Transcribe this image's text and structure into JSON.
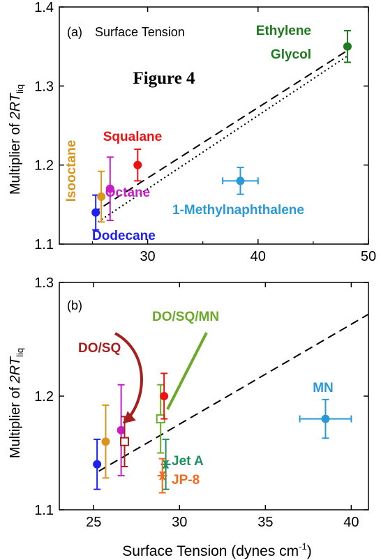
{
  "figure_label": "Figure 4",
  "shared_ylabel_prefix": "Multiplier of ",
  "shared_ylabel_main": "2RT",
  "shared_ylabel_sub": "liq",
  "xlabel_main": "Surface Tension (dynes cm",
  "xlabel_sup": "-1",
  "xlabel_end": ")",
  "chart_data": [
    {
      "type": "scatter",
      "panel_label": "(a)",
      "title": "Surface Tension",
      "xlim": [
        22,
        50
      ],
      "ylim": [
        1.1,
        1.4
      ],
      "xticks": [
        30,
        40,
        50
      ],
      "xtick_labels": [
        "30",
        "40",
        "50"
      ],
      "yticks": [
        1.1,
        1.2,
        1.3,
        1.4
      ],
      "ytick_labels": [
        "1.1",
        "1.2",
        "1.3",
        "1.4"
      ],
      "points": [
        {
          "name": "Dodecane",
          "x": 25.3,
          "y": 1.14,
          "yerr": 0.022,
          "xerr": 0,
          "color": "#1f1ff0"
        },
        {
          "name": "Isooctane",
          "x": 25.8,
          "y": 1.16,
          "yerr": 0.032,
          "xerr": 0,
          "color": "#d9951e"
        },
        {
          "name": "Octane",
          "x": 26.6,
          "y": 1.17,
          "yerr": 0.04,
          "xerr": 0,
          "color": "#c41ec4"
        },
        {
          "name": "Squalane",
          "x": 29.1,
          "y": 1.2,
          "yerr": 0.02,
          "xerr": 0,
          "color": "#ee1111"
        },
        {
          "name": "1-Methylnaphthalene",
          "x": 38.4,
          "y": 1.18,
          "yerr": 0.017,
          "xerr": 1.6,
          "color": "#2a9ad6"
        },
        {
          "name": "Ethylene Glycol",
          "x": 48.1,
          "y": 1.35,
          "yerr": 0.02,
          "xerr": 0,
          "color": "#1e7a1e"
        }
      ],
      "point_labels": [
        {
          "text": "Dodecane",
          "color": "#1f1ff0"
        },
        {
          "text": "Isooctane",
          "color": "#d9951e"
        },
        {
          "text": "Octane",
          "color": "#c41ec4"
        },
        {
          "text": "Squalane",
          "color": "#ee1111"
        },
        {
          "text": "1-Methylnaphthalene",
          "color": "#2a9ad6"
        },
        {
          "text": "Ethylene",
          "color": "#1e7a1e"
        },
        {
          "text": "Glycol",
          "color": "#1e7a1e"
        }
      ],
      "lines": [
        {
          "style": "dashed",
          "x": [
            25,
            48.1
          ],
          "y": [
            1.139,
            1.345
          ]
        },
        {
          "style": "dotted",
          "x": [
            25.5,
            48.1
          ],
          "y": [
            1.128,
            1.338
          ]
        }
      ]
    },
    {
      "type": "scatter",
      "panel_label": "(b)",
      "xlim": [
        23,
        41
      ],
      "ylim": [
        1.1,
        1.3
      ],
      "xticks": [
        25,
        30,
        35,
        40
      ],
      "xtick_labels": [
        "25",
        "30",
        "35",
        "40"
      ],
      "yticks": [
        1.1,
        1.2,
        1.3
      ],
      "ytick_labels": [
        "1.1",
        "1.2",
        "1.3"
      ],
      "points": [
        {
          "name": "Dodecane",
          "x": 25.2,
          "y": 1.14,
          "yerr": 0.022,
          "color": "#1f1ff0",
          "marker": "circle"
        },
        {
          "name": "Isooctane",
          "x": 25.7,
          "y": 1.16,
          "yerr": 0.032,
          "color": "#d9951e",
          "marker": "circle"
        },
        {
          "name": "Octane",
          "x": 26.6,
          "y": 1.17,
          "yerr": 0.04,
          "color": "#c41ec4",
          "marker": "circle"
        },
        {
          "name": "DO/SQ",
          "x": 26.8,
          "y": 1.16,
          "yerr": 0.022,
          "color": "#a61e1e",
          "marker": "square-open"
        },
        {
          "name": "DO/SQ/MN",
          "x": 28.9,
          "y": 1.18,
          "yerr": 0.03,
          "color": "#6aaa28",
          "marker": "square-open"
        },
        {
          "name": "Squalane",
          "x": 29.1,
          "y": 1.2,
          "yerr": 0.02,
          "color": "#ee1111",
          "marker": "circle"
        },
        {
          "name": "Jet A",
          "x": 29.2,
          "y": 1.14,
          "yerr": 0.022,
          "color": "#1e9060",
          "marker": "star"
        },
        {
          "name": "JP-8",
          "x": 29.0,
          "y": 1.13,
          "yerr": 0.015,
          "color": "#f26a1e",
          "marker": "star"
        },
        {
          "name": "MN",
          "x": 38.5,
          "y": 1.18,
          "yerr": 0.017,
          "xerr": 1.5,
          "color": "#2a9ad6",
          "marker": "circle"
        }
      ],
      "point_labels": [
        {
          "text": "DO/SQ",
          "color": "#a61e1e"
        },
        {
          "text": "DO/SQ/MN",
          "color": "#6aaa28"
        },
        {
          "text": "MN",
          "color": "#2a9ad6"
        },
        {
          "text": "Jet A",
          "color": "#1e9060"
        },
        {
          "text": "JP-8",
          "color": "#f26a1e"
        }
      ],
      "lines": [
        {
          "style": "dashed",
          "x": [
            25.3,
            41
          ],
          "y": [
            1.134,
            1.272
          ]
        }
      ]
    }
  ]
}
